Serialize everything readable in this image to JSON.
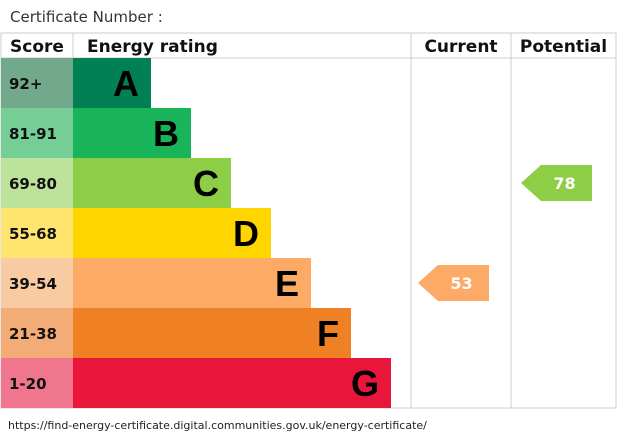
{
  "certificate_label": "Certificate Number :",
  "footer_url": "https://find-energy-certificate.digital.communities.gov.uk/energy-certificate/",
  "chart_data": {
    "type": "bar",
    "headers": {
      "score": "Score",
      "rating": "Energy rating",
      "current": "Current",
      "potential": "Potential"
    },
    "bands": [
      {
        "letter": "A",
        "range": "92+",
        "color": "#008054",
        "score_bg": "#72a98d"
      },
      {
        "letter": "B",
        "range": "81-91",
        "color": "#19b459",
        "score_bg": "#76ce97"
      },
      {
        "letter": "C",
        "range": "69-80",
        "color": "#8dce46",
        "score_bg": "#bde39a"
      },
      {
        "letter": "D",
        "range": "55-68",
        "color": "#ffd500",
        "score_bg": "#ffe570"
      },
      {
        "letter": "E",
        "range": "39-54",
        "color": "#fcaa65",
        "score_bg": "#f9cba3"
      },
      {
        "letter": "F",
        "range": "21-38",
        "color": "#ef8023",
        "score_bg": "#f3ac76"
      },
      {
        "letter": "G",
        "range": "1-20",
        "color": "#e9153b",
        "score_bg": "#f0768d"
      }
    ],
    "current": {
      "value": 53,
      "band": "E",
      "color": "#fcaa65"
    },
    "potential": {
      "value": 78,
      "band": "C",
      "color": "#8dce46"
    }
  }
}
